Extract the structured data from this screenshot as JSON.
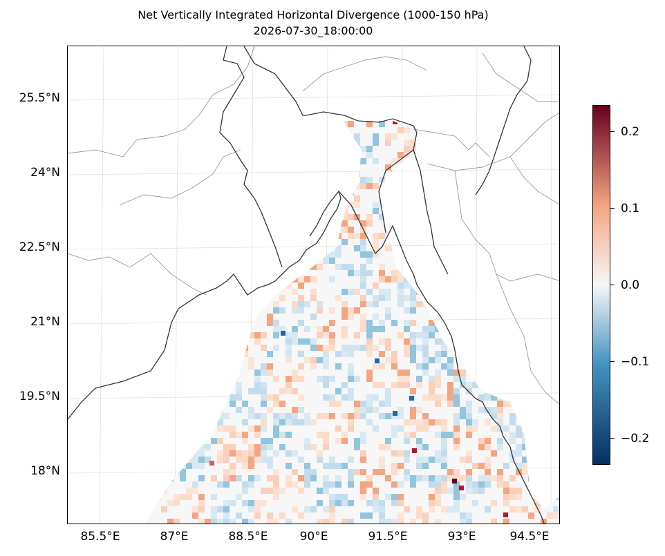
{
  "title": {
    "line1": "Net Vertically Integrated Horizontal Divergence (1000-150 hPa)",
    "line2": "2026-07-30_18:00:00"
  },
  "axes": {
    "lat_labels": [
      "25.5°N",
      "24°N",
      "22.5°N",
      "21°N",
      "19.5°N",
      "18°N"
    ],
    "lon_labels": [
      "85.5°E",
      "87°E",
      "88.5°E",
      "90°E",
      "91.5°E",
      "93°E",
      "94.5°E"
    ]
  },
  "colorbar": {
    "tick_labels": [
      "0.2",
      "0.1",
      "0.0",
      "−0.1",
      "−0.2"
    ],
    "ticks": [
      0.2,
      0.1,
      0.0,
      -0.1,
      -0.2
    ],
    "range": [
      -0.23,
      0.23
    ],
    "colormap": "RdBu_r",
    "colors": {
      "min": "#053061",
      "neg_mid": "#4393c3",
      "zero": "#f7f7f7",
      "pos_mid": "#f4a582",
      "max": "#67001f"
    }
  },
  "map": {
    "extent_lon": [
      84.8,
      95.0
    ],
    "extent_lat": [
      16.9,
      26.6
    ],
    "coastline_color": "#333333",
    "border_color": "#999999",
    "gridlines": true
  }
}
